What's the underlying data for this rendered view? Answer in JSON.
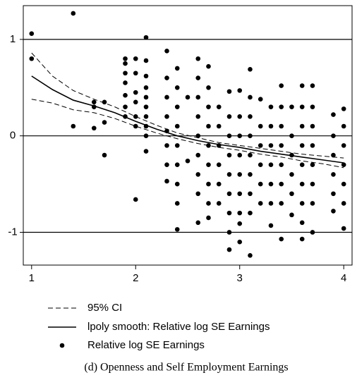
{
  "chart_data": {
    "type": "scatter",
    "caption": "(d) Openness and Self Employment Earnings",
    "xlim": [
      0.92,
      4.08
    ],
    "ylim": [
      -1.34,
      1.35
    ],
    "xticks": [
      1,
      2,
      3,
      4
    ],
    "yticks": [
      1,
      0,
      -1
    ],
    "grid": true,
    "ci": {
      "name": "95% CI",
      "color": "#000000",
      "x": [
        1,
        1.2,
        1.4,
        1.6,
        1.8,
        2,
        2.2,
        2.4,
        2.6,
        2.8,
        3,
        3.2,
        3.4,
        3.6,
        3.8,
        4
      ],
      "upper": [
        0.86,
        0.62,
        0.47,
        0.38,
        0.3,
        0.2,
        0.11,
        0.03,
        -0.02,
        -0.07,
        -0.1,
        -0.13,
        -0.16,
        -0.19,
        -0.21,
        -0.23
      ],
      "lower": [
        0.38,
        0.34,
        0.27,
        0.24,
        0.18,
        0.1,
        0.03,
        -0.03,
        -0.08,
        -0.12,
        -0.15,
        -0.19,
        -0.22,
        -0.26,
        -0.29,
        -0.33
      ]
    },
    "smooth": {
      "name": "lpoly smooth: Relative log SE Earnings",
      "color": "#000000",
      "x": [
        1,
        1.2,
        1.4,
        1.6,
        1.8,
        2,
        2.2,
        2.4,
        2.6,
        2.8,
        3,
        3.2,
        3.4,
        3.6,
        3.8,
        4
      ],
      "values": [
        0.62,
        0.48,
        0.37,
        0.31,
        0.24,
        0.15,
        0.07,
        0.0,
        -0.05,
        -0.09,
        -0.12,
        -0.16,
        -0.19,
        -0.22,
        -0.25,
        -0.28
      ]
    },
    "points": {
      "name": "Relative log SE Earnings",
      "color": "#000000",
      "columns": [
        {
          "x": 1.0,
          "values": [
            1.06,
            0.8
          ]
        },
        {
          "x": 1.4,
          "values": [
            1.27,
            0.1
          ]
        },
        {
          "x": 1.6,
          "values": [
            0.35,
            0.08,
            0.3
          ]
        },
        {
          "x": 1.7,
          "values": [
            0.35,
            0.14,
            -0.2
          ]
        },
        {
          "x": 1.9,
          "values": [
            0.8,
            0.75,
            0.65,
            0.55,
            0.42,
            0.3,
            0.2
          ]
        },
        {
          "x": 2.0,
          "values": [
            0.8,
            0.65,
            0.45,
            0.35,
            0.2,
            0.1,
            -0.66
          ]
        },
        {
          "x": 2.1,
          "values": [
            1.02,
            0.78,
            0.62,
            0.5,
            0.4,
            0.3,
            0.2,
            0.1,
            0.0,
            -0.16
          ]
        },
        {
          "x": 2.3,
          "values": [
            0.88,
            0.6,
            0.4,
            0.2,
            0.05,
            -0.1,
            -0.3,
            -0.47
          ]
        },
        {
          "x": 2.4,
          "values": [
            0.7,
            0.5,
            0.3,
            0.1,
            -0.1,
            -0.3,
            -0.5,
            -0.7,
            -0.97
          ]
        },
        {
          "x": 2.5,
          "values": [
            0.4,
            -0.26
          ]
        },
        {
          "x": 2.6,
          "values": [
            0.8,
            0.6,
            0.4,
            0.2,
            0.0,
            -0.2,
            -0.4,
            -0.6,
            -0.9
          ]
        },
        {
          "x": 2.7,
          "values": [
            0.72,
            0.5,
            0.3,
            0.1,
            -0.1,
            -0.3,
            -0.5,
            -0.7,
            -0.85
          ]
        },
        {
          "x": 2.8,
          "values": [
            0.3,
            0.1,
            -0.1,
            -0.3,
            -0.5,
            -0.7
          ]
        },
        {
          "x": 2.9,
          "values": [
            0.46,
            0.2,
            0.0,
            -0.2,
            -0.4,
            -0.6,
            -0.8,
            -1.0,
            -1.18
          ]
        },
        {
          "x": 3.0,
          "values": [
            0.47,
            0.2,
            0.0,
            -0.2,
            -0.4,
            -0.6,
            -0.8,
            -0.91,
            -1.1
          ]
        },
        {
          "x": 3.1,
          "values": [
            0.69,
            0.4,
            0.2,
            0.0,
            -0.2,
            -0.4,
            -0.6,
            -0.8,
            -1.24
          ]
        },
        {
          "x": 3.2,
          "values": [
            0.38,
            0.1,
            -0.1,
            -0.3,
            -0.5,
            -0.7
          ]
        },
        {
          "x": 3.3,
          "values": [
            0.3,
            0.1,
            -0.1,
            -0.3,
            -0.5,
            -0.7,
            -0.93
          ]
        },
        {
          "x": 3.4,
          "values": [
            0.52,
            0.3,
            0.1,
            -0.1,
            -0.3,
            -0.5,
            -0.7,
            -1.07
          ]
        },
        {
          "x": 3.5,
          "values": [
            0.3,
            0.0,
            -0.2,
            -0.4,
            -0.6,
            -0.82
          ]
        },
        {
          "x": 3.6,
          "values": [
            0.52,
            0.3,
            0.1,
            -0.1,
            -0.3,
            -0.5,
            -0.7,
            -0.9,
            -1.07
          ]
        },
        {
          "x": 3.7,
          "values": [
            0.52,
            0.3,
            0.1,
            -0.1,
            -0.3,
            -0.5,
            -0.7,
            -1.0
          ]
        },
        {
          "x": 3.9,
          "values": [
            0.22,
            0.0,
            -0.2,
            -0.4,
            -0.6,
            -0.78
          ]
        },
        {
          "x": 4.0,
          "values": [
            0.28,
            0.1,
            -0.1,
            -0.3,
            -0.5,
            -0.7,
            -0.96
          ]
        }
      ]
    }
  }
}
